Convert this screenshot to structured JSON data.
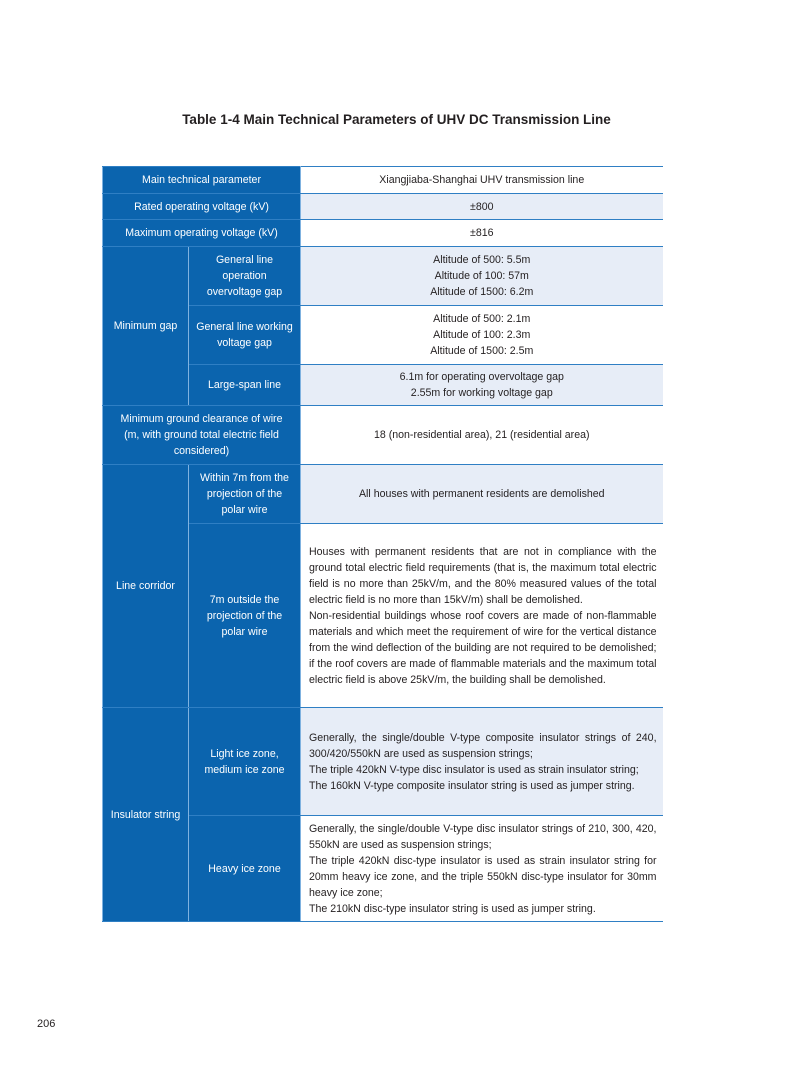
{
  "title": "Table 1-4   Main Technical Parameters of UHV DC Transmission Line",
  "page_number": "206",
  "colors": {
    "header_blue": "#0b64ae",
    "light_row": "#e7edf7",
    "rule": "#2f7fc4"
  },
  "table": {
    "header": {
      "label": "Main technical parameter",
      "value": "Xiangjiaba-Shanghai UHV transmission line"
    },
    "rated_voltage": {
      "label": "Rated operating voltage (kV)",
      "value": "±800"
    },
    "max_voltage": {
      "label": "Maximum operating voltage (kV)",
      "value": "±816"
    },
    "minimum_gap": {
      "label": "Minimum gap",
      "rows": [
        {
          "label": "General line operation overvoltage gap",
          "lines": [
            "Altitude of 500: 5.5m",
            "Altitude of 100: 57m",
            "Altitude of 1500: 6.2m"
          ]
        },
        {
          "label": "General line working voltage gap",
          "lines": [
            "Altitude of 500: 2.1m",
            "Altitude of 100: 2.3m",
            "Altitude of 1500: 2.5m"
          ]
        },
        {
          "label": "Large-span line",
          "lines": [
            "6.1m for operating overvoltage gap",
            "2.55m for working voltage gap"
          ]
        }
      ]
    },
    "ground_clearance": {
      "label": "Minimum ground clearance of wire (m, with ground total electric field considered)",
      "value": "18 (non-residential area), 21 (residential area)"
    },
    "line_corridor": {
      "label": "Line corridor",
      "rows": [
        {
          "label": "Within 7m from the projection of the polar wire",
          "value": "All houses with permanent residents are demolished"
        },
        {
          "label": "7m outside the projection of the polar wire",
          "lines": [
            "Houses with permanent residents that are not in compliance with the ground total electric field requirements (that is, the maximum total electric field is no more than 25kV/m, and the 80% measured values of the total electric field is no more than 15kV/m) shall be demolished.",
            "Non-residential buildings whose roof covers are made of non-flammable materials and which meet the requirement of wire for the vertical distance from the wind deflection of the building are not required to be demolished; if the roof covers are made of flammable materials and the maximum total electric field is above 25kV/m, the building shall be demolished."
          ]
        }
      ]
    },
    "insulator_string": {
      "label": "Insulator string",
      "rows": [
        {
          "label": "Light ice zone, medium ice zone",
          "lines": [
            "Generally, the single/double V-type composite insulator strings of 240, 300/420/550kN are used as suspension strings;",
            "The triple 420kN V-type disc insulator is used as strain insulator string;",
            "The 160kN V-type composite insulator string is used as jumper string."
          ]
        },
        {
          "label": "Heavy ice zone",
          "lines": [
            "Generally, the single/double V-type disc insulator strings of 210, 300, 420, 550kN are used as suspension strings;",
            "The triple 420kN disc-type insulator is used as strain insulator string for 20mm heavy ice zone, and the triple 550kN disc-type insulator for 30mm heavy ice zone;",
            "The 210kN disc-type insulator string is used as jumper string."
          ]
        }
      ]
    }
  }
}
